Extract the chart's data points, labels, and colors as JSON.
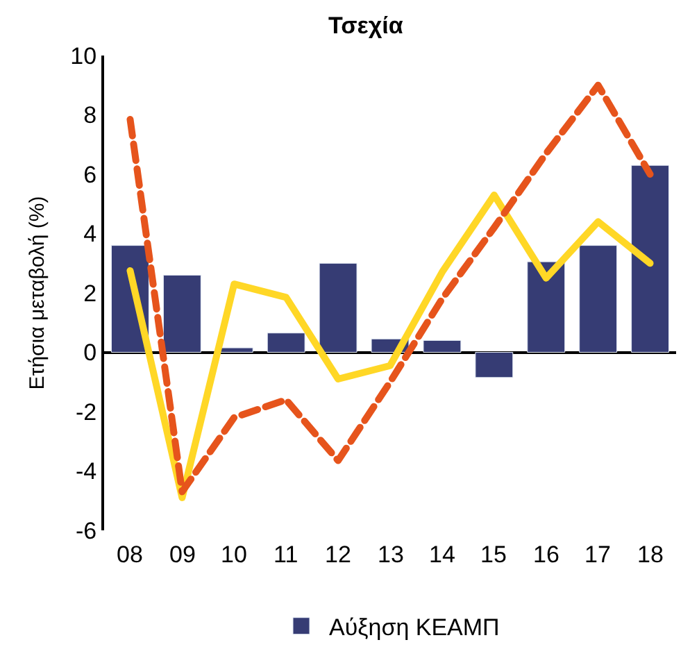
{
  "chart_data": {
    "type": "bar",
    "title": "Τσεχία",
    "ylabel": "Ετήσια μεταβολή (%)",
    "categories": [
      "08",
      "09",
      "10",
      "11",
      "12",
      "13",
      "14",
      "15",
      "16",
      "17",
      "18"
    ],
    "series": [
      {
        "name": "Αύξηση ΚΕΑΜΠ",
        "color": "#363c74",
        "values": [
          3.6,
          2.6,
          0.15,
          0.65,
          3.0,
          0.45,
          0.4,
          -0.85,
          3.05,
          3.6,
          6.3
        ]
      },
      {
        "type": "line",
        "color": "#ffd726",
        "line_style": "solid",
        "values": [
          2.75,
          -4.9,
          2.3,
          1.85,
          -0.9,
          -0.45,
          2.7,
          5.3,
          2.5,
          4.4,
          3.0
        ]
      },
      {
        "type": "line",
        "color": "#e6541c",
        "line_style": "dashed",
        "values": [
          7.85,
          -4.7,
          -2.2,
          -1.6,
          -3.65,
          -1.0,
          1.8,
          4.2,
          6.7,
          9.0,
          6.0
        ]
      }
    ],
    "ylim": [
      -6,
      10
    ],
    "yticks": [
      -6,
      -4,
      -2,
      0,
      2,
      4,
      6,
      8,
      10
    ],
    "legend": "bottom"
  }
}
